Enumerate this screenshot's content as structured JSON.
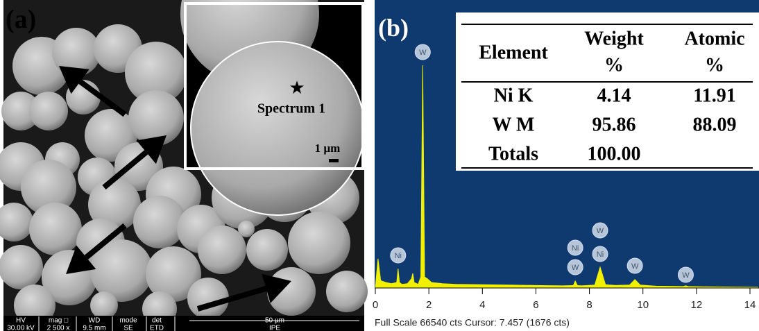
{
  "panel_a": {
    "label": "(a)",
    "inset": {
      "annotation": "Spectrum 1",
      "scale_bar": "1 µm"
    },
    "info_bar": {
      "headers": [
        "HV",
        "mag □",
        "WD",
        "mode",
        "det"
      ],
      "values": [
        "30.00 kV",
        "2 500 x",
        "9.5 mm",
        "SE",
        "ETD"
      ],
      "scale": "50 µm",
      "org": "IPE"
    }
  },
  "panel_b": {
    "label": "(b)",
    "table": {
      "columns": [
        [
          "Element"
        ],
        [
          "Weight",
          "%"
        ],
        [
          "Atomic",
          "%"
        ]
      ],
      "rows": [
        [
          "Ni K",
          "4.14",
          "11.91"
        ],
        [
          "W M",
          "95.86",
          "88.09"
        ],
        [
          "Totals",
          "100.00"
        ]
      ]
    },
    "spectrum": {
      "type": "area",
      "color": "#f0f000",
      "x": [
        0,
        0.1,
        0.2,
        0.4,
        0.6,
        0.8,
        0.85,
        0.9,
        1.0,
        1.2,
        1.35,
        1.4,
        1.45,
        1.6,
        1.7,
        1.77,
        1.84,
        1.95,
        2.1,
        2.5,
        3,
        4,
        5,
        6,
        7,
        7.4,
        7.47,
        7.55,
        7.7,
        8.2,
        8.4,
        8.6,
        9.0,
        9.5,
        9.7,
        9.9,
        10.5,
        11.5,
        11.6,
        11.7,
        12.5,
        14.3
      ],
      "values": [
        0,
        8000,
        2000,
        1500,
        1200,
        1500,
        5300,
        1500,
        1000,
        1200,
        2500,
        4000,
        1500,
        1000,
        3000,
        61000,
        3000,
        2500,
        1500,
        1200,
        1000,
        900,
        800,
        700,
        600,
        700,
        1900,
        700,
        600,
        800,
        5700,
        900,
        700,
        800,
        2300,
        800,
        500,
        400,
        600,
        400,
        300,
        200
      ],
      "xlim": [
        0,
        14.3
      ],
      "ylim": [
        0,
        66540
      ],
      "xticks": [
        0,
        2,
        4,
        6,
        8,
        10,
        12,
        14
      ]
    },
    "peak_labels": [
      {
        "text": "Ni",
        "energy": 0.85
      },
      {
        "text": "W",
        "energy": 1.77
      },
      {
        "text": "Ni",
        "energy": 7.47
      },
      {
        "text": "W",
        "energy": 7.47
      },
      {
        "text": "W",
        "energy": 8.4
      },
      {
        "text": "Ni",
        "energy": 8.4
      },
      {
        "text": "W",
        "energy": 9.7
      },
      {
        "text": "W",
        "energy": 11.6
      }
    ],
    "footer": "Full Scale 66540 cts Cursor: 7.457  (1676 cts)"
  }
}
